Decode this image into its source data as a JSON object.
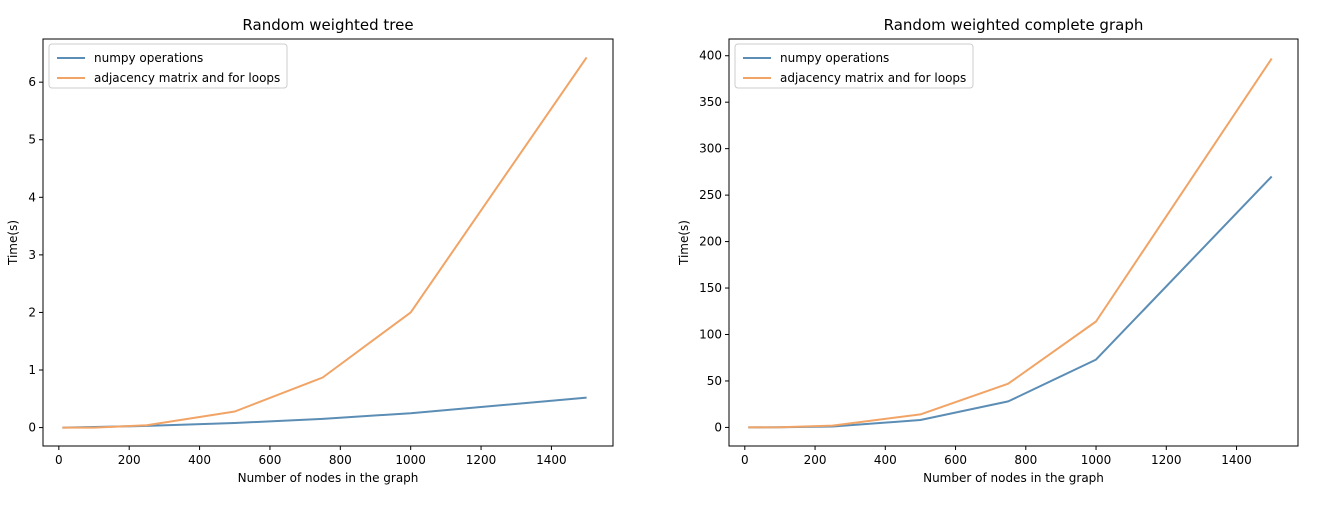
{
  "chart_data": [
    {
      "type": "line",
      "title": "Random weighted tree",
      "xlabel": "Number of nodes in the graph",
      "ylabel": "Time(s)",
      "xlim": [
        -45,
        1575
      ],
      "ylim": [
        -0.32,
        6.75
      ],
      "xticks": [
        0,
        200,
        400,
        600,
        800,
        1000,
        1200,
        1400
      ],
      "yticks": [
        0,
        1,
        2,
        3,
        4,
        5,
        6
      ],
      "legend": "top-left",
      "grid": false,
      "series": [
        {
          "name": "numpy operations",
          "color": "#1f77b4",
          "x": [
            10,
            100,
            250,
            500,
            750,
            1000,
            1500
          ],
          "y": [
            0.0,
            0.01,
            0.03,
            0.08,
            0.15,
            0.25,
            0.52
          ]
        },
        {
          "name": "adjacency matrix and for loops",
          "color": "#ff7f0e",
          "x": [
            10,
            100,
            250,
            500,
            750,
            1000,
            1500
          ],
          "y": [
            0.0,
            0.0,
            0.04,
            0.28,
            0.87,
            2.0,
            6.43
          ]
        }
      ]
    },
    {
      "type": "line",
      "title": "Random weighted complete graph",
      "xlabel": "Number of nodes in the graph",
      "ylabel": "Time(s)",
      "xlim": [
        -45,
        1575
      ],
      "ylim": [
        -20,
        418
      ],
      "xticks": [
        0,
        200,
        400,
        600,
        800,
        1000,
        1200,
        1400
      ],
      "yticks": [
        0,
        50,
        100,
        150,
        200,
        250,
        300,
        350,
        400
      ],
      "legend": "top-left",
      "grid": false,
      "series": [
        {
          "name": "numpy operations",
          "color": "#1f77b4",
          "x": [
            10,
            100,
            250,
            500,
            750,
            1000,
            1500
          ],
          "y": [
            0.0,
            0.1,
            1.0,
            8.0,
            28.0,
            73.0,
            270.0
          ]
        },
        {
          "name": "adjacency matrix and for loops",
          "color": "#ff7f0e",
          "x": [
            10,
            100,
            250,
            500,
            750,
            1000,
            1500
          ],
          "y": [
            0.0,
            0.2,
            2.0,
            14.0,
            47.0,
            114.0,
            397.0
          ]
        }
      ]
    }
  ]
}
